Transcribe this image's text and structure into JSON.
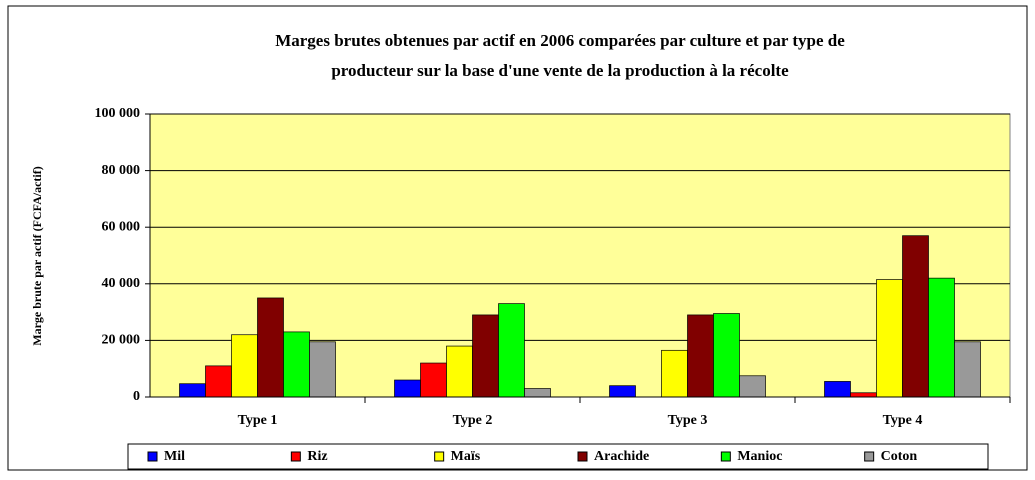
{
  "chart_data": {
    "type": "bar",
    "title": "Marges brutes obtenues par actif en 2006 comparées par culture et par type de",
    "subtitle": "producteur sur la base d'une vente de la production à la récolte",
    "y_label": "Marge brute par actif  (FCFA/actif)",
    "categories": [
      "Type 1",
      "Type 2",
      "Type 3",
      "Type 4"
    ],
    "series": [
      {
        "name": "Mil",
        "color": "#0000ff",
        "values": [
          4700,
          6000,
          4000,
          5500
        ]
      },
      {
        "name": "Riz",
        "color": "#ff0000",
        "values": [
          11000,
          12000,
          0,
          1500
        ]
      },
      {
        "name": "Maïs",
        "color": "#ffff00",
        "values": [
          22000,
          18000,
          16500,
          41500
        ]
      },
      {
        "name": "Arachide",
        "color": "#800000",
        "values": [
          35000,
          29000,
          29000,
          57000
        ]
      },
      {
        "name": "Manioc",
        "color": "#00ff00",
        "values": [
          23000,
          33000,
          29500,
          42000
        ]
      },
      {
        "name": "Coton",
        "color": "#999999",
        "values": [
          19500,
          3000,
          7500,
          19500
        ]
      }
    ],
    "ylim": [
      0,
      100000
    ],
    "yticks": [
      0,
      {
        "value": 20000,
        "label": "20 000"
      },
      {
        "value": 40000,
        "label": "40 000"
      },
      {
        "value": 60000,
        "label": "60 000"
      },
      {
        "value": 80000,
        "label": "80 000"
      },
      {
        "value": 100000,
        "label": "100 000"
      }
    ],
    "grid": true,
    "legend": "bottom",
    "background": "#ffff99"
  }
}
